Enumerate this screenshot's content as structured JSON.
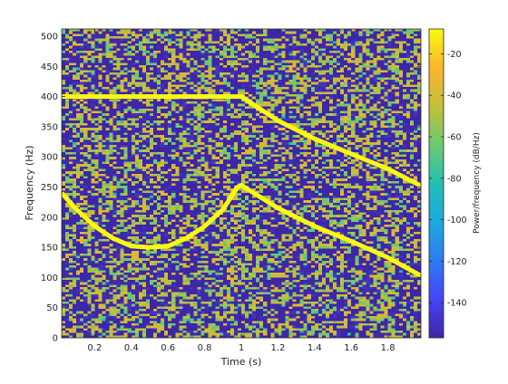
{
  "chart_data": {
    "type": "heatmap",
    "title": "",
    "xlabel": "Time (s)",
    "ylabel": "Frequency (Hz)",
    "colorbar_label": "Power/frequency (dB/Hz)",
    "xlim": [
      0.02,
      1.98
    ],
    "ylim": [
      0,
      512
    ],
    "clim": [
      -157,
      -8
    ],
    "x_ticks": [
      0.2,
      0.4,
      0.6,
      0.8,
      1,
      1.2,
      1.4,
      1.6,
      1.8
    ],
    "x_tick_labels": [
      "0.2",
      "0.4",
      "0.6",
      "0.8",
      "1",
      "1.2",
      "1.4",
      "1.6",
      "1.8"
    ],
    "y_ticks": [
      0,
      50,
      100,
      150,
      200,
      250,
      300,
      350,
      400,
      450,
      500
    ],
    "y_tick_labels": [
      "0",
      "50",
      "100",
      "150",
      "200",
      "250",
      "300",
      "350",
      "400",
      "450",
      "500"
    ],
    "colorbar_ticks": [
      -140,
      -120,
      -100,
      -80,
      -60,
      -40,
      -20
    ],
    "colorbar_tick_labels": [
      "-140",
      "-120",
      "-100",
      "-80",
      "-60",
      "-40",
      "-20"
    ],
    "colormap": [
      "#3e26a8",
      "#4743f8",
      "#2c7cf2",
      "#1ca9df",
      "#22c0b3",
      "#6cca6e",
      "#c4bf3b",
      "#fdb52e",
      "#f9fb0e"
    ],
    "colorbar": true,
    "grid": false,
    "series": [
      {
        "x": [
          0.02,
          0.2,
          0.4,
          0.6,
          0.8,
          0.98,
          1.0,
          1.2,
          1.4,
          1.6,
          1.8,
          1.98
        ],
        "y": [
          400,
          400,
          400,
          400,
          400,
          400,
          400,
          360,
          330,
          305,
          280,
          252
        ]
      },
      {
        "x": [
          0.02,
          0.1,
          0.2,
          0.3,
          0.4,
          0.5,
          0.6,
          0.7,
          0.8,
          0.9,
          0.98,
          1.0,
          1.2,
          1.4,
          1.6,
          1.8,
          1.98
        ],
        "y": [
          240,
          213,
          185,
          165,
          152,
          150,
          152,
          165,
          185,
          213,
          250,
          253,
          215,
          185,
          160,
          133,
          103
        ]
      }
    ]
  }
}
